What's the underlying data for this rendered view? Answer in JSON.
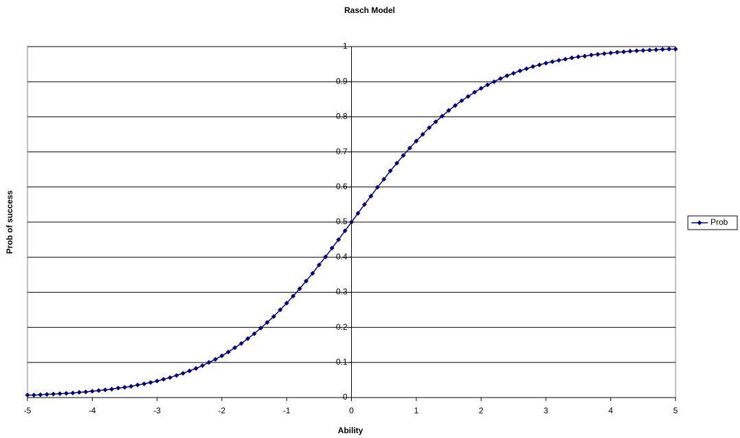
{
  "chart_data": {
    "type": "line",
    "title": "Rasch Model",
    "x_label": "Ability",
    "y_label": "Prob of success",
    "x": [
      -5,
      -4.9,
      -4.8,
      -4.7,
      -4.6,
      -4.5,
      -4.4,
      -4.3,
      -4.2,
      -4.1,
      -4,
      -3.9,
      -3.8,
      -3.7,
      -3.6,
      -3.5,
      -3.4,
      -3.3,
      -3.2,
      -3.1,
      -3,
      -2.9,
      -2.8,
      -2.7,
      -2.6,
      -2.5,
      -2.4,
      -2.3,
      -2.2,
      -2.1,
      -2,
      -1.9,
      -1.8,
      -1.7,
      -1.6,
      -1.5,
      -1.4,
      -1.3,
      -1.2,
      -1.1,
      -1,
      -0.9,
      -0.8,
      -0.7,
      -0.6,
      -0.5,
      -0.4,
      -0.3,
      -0.2,
      -0.1,
      0,
      0.1,
      0.2,
      0.3,
      0.4,
      0.5,
      0.6,
      0.7,
      0.8,
      0.9,
      1,
      1.1,
      1.2,
      1.3,
      1.4,
      1.5,
      1.6,
      1.7,
      1.8,
      1.9,
      2,
      2.1,
      2.2,
      2.3,
      2.4,
      2.5,
      2.6,
      2.7,
      2.8,
      2.9,
      3,
      3.1,
      3.2,
      3.3,
      3.4,
      3.5,
      3.6,
      3.7,
      3.8,
      3.9,
      4,
      4.1,
      4.2,
      4.3,
      4.4,
      4.5,
      4.6,
      4.7,
      4.8,
      4.9,
      5
    ],
    "series": [
      {
        "name": "Prob",
        "color": "#000080",
        "values": [
          0.007,
          0.007,
          0.008,
          0.009,
          0.01,
          0.011,
          0.012,
          0.013,
          0.015,
          0.016,
          0.018,
          0.02,
          0.022,
          0.024,
          0.027,
          0.029,
          0.032,
          0.036,
          0.039,
          0.043,
          0.047,
          0.052,
          0.057,
          0.063,
          0.069,
          0.076,
          0.083,
          0.091,
          0.1,
          0.109,
          0.119,
          0.13,
          0.142,
          0.154,
          0.168,
          0.182,
          0.198,
          0.214,
          0.231,
          0.25,
          0.269,
          0.289,
          0.31,
          0.332,
          0.354,
          0.378,
          0.401,
          0.426,
          0.45,
          0.475,
          0.5,
          0.525,
          0.55,
          0.574,
          0.599,
          0.622,
          0.646,
          0.668,
          0.69,
          0.711,
          0.731,
          0.75,
          0.769,
          0.786,
          0.802,
          0.818,
          0.832,
          0.846,
          0.858,
          0.87,
          0.881,
          0.891,
          0.9,
          0.909,
          0.917,
          0.924,
          0.931,
          0.937,
          0.943,
          0.948,
          0.953,
          0.957,
          0.961,
          0.964,
          0.968,
          0.971,
          0.973,
          0.976,
          0.978,
          0.98,
          0.982,
          0.984,
          0.985,
          0.987,
          0.988,
          0.989,
          0.99,
          0.991,
          0.992,
          0.993,
          0.993
        ]
      }
    ],
    "xlim": [
      -5,
      5
    ],
    "ylim": [
      0,
      1
    ],
    "xticks": [
      -5,
      -4,
      -3,
      -2,
      -1,
      0,
      1,
      2,
      3,
      4,
      5
    ],
    "yticks": [
      0,
      0.1,
      0.2,
      0.3,
      0.4,
      0.5,
      0.6,
      0.7,
      0.8,
      0.9,
      1
    ],
    "grid": true,
    "legend": "right"
  }
}
